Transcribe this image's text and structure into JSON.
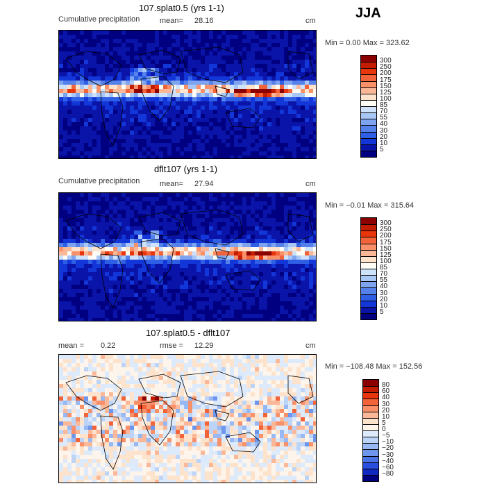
{
  "season": "JJA",
  "panels": [
    {
      "title": "107.splat0.5 (yrs 1-1)",
      "left_label": "Cumulative precipitation",
      "stat_label": "mean=",
      "stat_value": "28.16",
      "units": "cm",
      "minmax": "Min =    0.00 Max = 323.62",
      "scheme": "precip"
    },
    {
      "title": "dflt107 (yrs 1-1)",
      "left_label": "Cumulative precipitation",
      "stat_label": "mean=",
      "stat_value": "27.94",
      "units": "cm",
      "minmax": "Min =  −0.01 Max = 315.64",
      "scheme": "precip"
    },
    {
      "title": "107.splat0.5 - dflt107",
      "left_label": "mean =",
      "left_value": "0.22",
      "stat_label": "rmse =",
      "stat_value": "12.29",
      "units": "cm",
      "minmax": "Min = −108.48 Max = 152.56",
      "scheme": "diff"
    }
  ],
  "colorbars": {
    "precip": {
      "levels": [
        "300",
        "250",
        "200",
        "175",
        "150",
        "125",
        "100",
        "85",
        "70",
        "55",
        "40",
        "30",
        "20",
        "10",
        "5"
      ],
      "colors": [
        "#8b0000",
        "#c41c00",
        "#e8350c",
        "#f2633a",
        "#f8906a",
        "#fbb898",
        "#fde2cc",
        "#fdfdf5",
        "#cfe2fb",
        "#a8c6f6",
        "#7ea4f0",
        "#5582ea",
        "#2f5fe4",
        "#1336d8",
        "#0a14a8",
        "#000080"
      ]
    },
    "diff": {
      "levels": [
        "80",
        "60",
        "40",
        "30",
        "20",
        "10",
        "5",
        "0",
        "−5",
        "−10",
        "−20",
        "−30",
        "−40",
        "−60",
        "−80"
      ],
      "colors": [
        "#8b0000",
        "#c41c00",
        "#e8350c",
        "#f2633a",
        "#f8906a",
        "#fbb898",
        "#fde2cc",
        "#fdf4ec",
        "#ddeafb",
        "#bcd4f7",
        "#97b8f2",
        "#6e96ec",
        "#4a74e6",
        "#2a4fde",
        "#0f28c0",
        "#000080"
      ]
    }
  },
  "chart_data": [
    {
      "type": "heatmap",
      "title": "107.splat0.5 (yrs 1-1)",
      "field": "Cumulative precipitation",
      "units": "cm",
      "mean": 28.16,
      "min": 0.0,
      "max": 323.62,
      "contour_levels": [
        5,
        10,
        20,
        30,
        40,
        55,
        70,
        85,
        100,
        125,
        150,
        175,
        200,
        250,
        300
      ]
    },
    {
      "type": "heatmap",
      "title": "dflt107 (yrs 1-1)",
      "field": "Cumulative precipitation",
      "units": "cm",
      "mean": 27.94,
      "min": -0.01,
      "max": 315.64,
      "contour_levels": [
        5,
        10,
        20,
        30,
        40,
        55,
        70,
        85,
        100,
        125,
        150,
        175,
        200,
        250,
        300
      ]
    },
    {
      "type": "heatmap",
      "title": "107.splat0.5 - dflt107",
      "units": "cm",
      "mean": 0.22,
      "rmse": 12.29,
      "min": -108.48,
      "max": 152.56,
      "contour_levels": [
        -80,
        -60,
        -40,
        -30,
        -20,
        -10,
        -5,
        0,
        5,
        10,
        20,
        30,
        40,
        60,
        80
      ]
    }
  ]
}
